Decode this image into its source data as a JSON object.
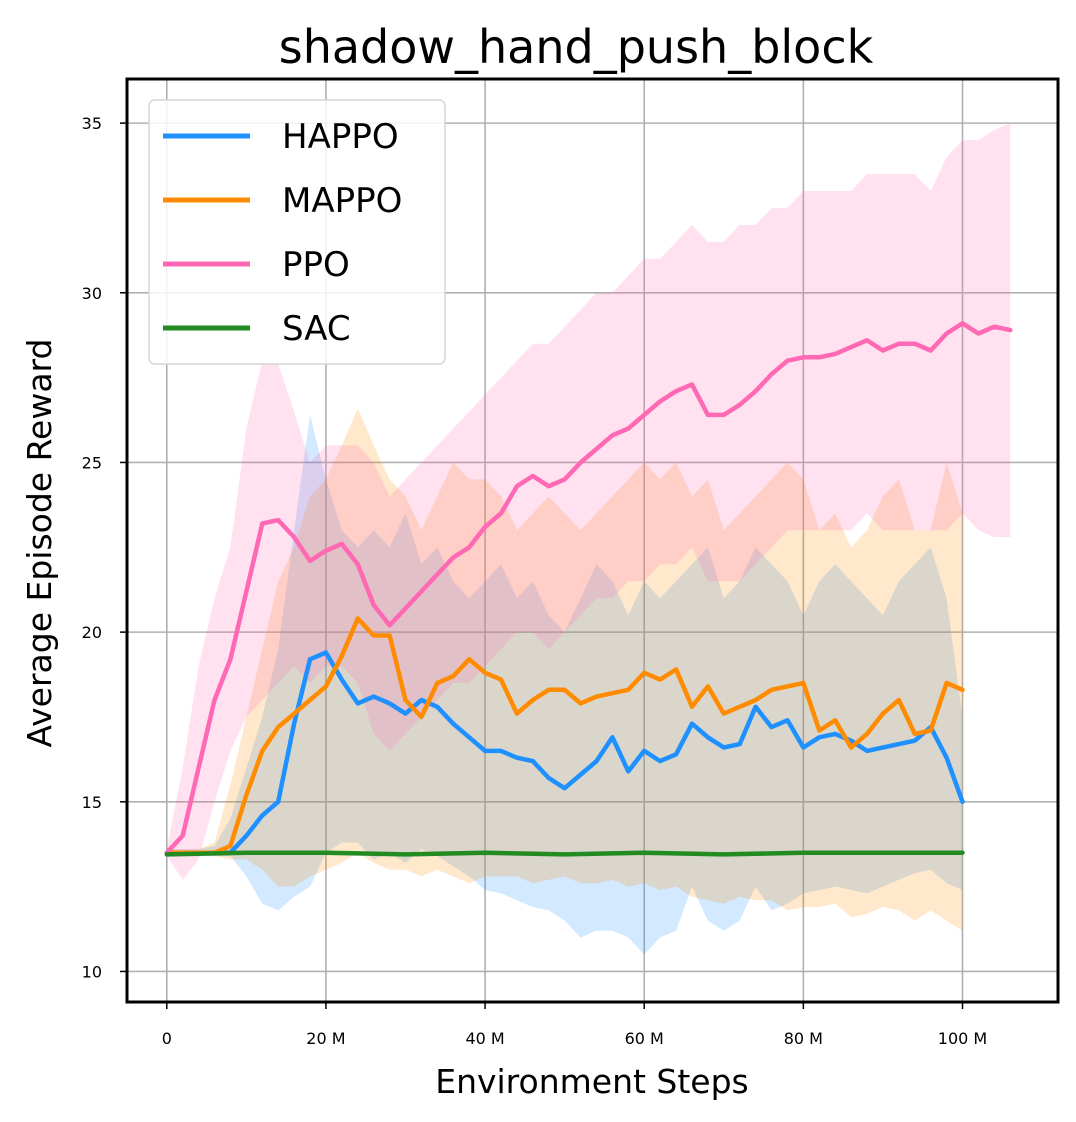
{
  "chart_data": {
    "type": "line",
    "title": "shadow_hand_push_block",
    "xlabel": "Environment Steps",
    "ylabel": "Average Episode Reward",
    "xlim": [
      -5,
      112
    ],
    "ylim": [
      9.1,
      36.3
    ],
    "x_ticks": [
      0,
      20,
      40,
      60,
      80,
      100
    ],
    "x_tick_labels": [
      "0",
      "20 M",
      "40 M",
      "60 M",
      "80 M",
      "100 M"
    ],
    "y_ticks": [
      10,
      15,
      20,
      25,
      30,
      35
    ],
    "y_tick_labels": [
      "10",
      "15",
      "20",
      "25",
      "30",
      "35"
    ],
    "grid": true,
    "legend_position": "top-left",
    "series": [
      {
        "name": "HAPPO",
        "color": "#1E90FF",
        "x": [
          0,
          2,
          4,
          6,
          8,
          10,
          12,
          14,
          16,
          18,
          20,
          22,
          24,
          26,
          28,
          30,
          32,
          34,
          36,
          38,
          40,
          42,
          44,
          46,
          48,
          50,
          52,
          54,
          56,
          58,
          60,
          62,
          64,
          66,
          68,
          70,
          72,
          74,
          76,
          78,
          80,
          82,
          84,
          86,
          88,
          90,
          92,
          94,
          96,
          98,
          100
        ],
        "y": [
          13.5,
          13.5,
          13.5,
          13.5,
          13.5,
          14.0,
          14.6,
          15.0,
          17.3,
          19.2,
          19.4,
          18.6,
          17.9,
          18.1,
          17.9,
          17.6,
          18.0,
          17.8,
          17.3,
          16.9,
          16.5,
          16.5,
          16.3,
          16.2,
          15.7,
          15.4,
          15.8,
          16.2,
          16.9,
          15.9,
          16.5,
          16.2,
          16.4,
          17.3,
          16.9,
          16.6,
          16.7,
          17.8,
          17.2,
          17.4,
          16.6,
          16.9,
          17.0,
          16.8,
          16.5,
          16.6,
          16.7,
          16.8,
          17.2,
          16.3,
          15.0
        ],
        "band_upper": [
          13.6,
          13.6,
          13.6,
          13.7,
          14.5,
          16.0,
          17.5,
          19.5,
          23.0,
          26.4,
          24.5,
          23.0,
          22.5,
          23.0,
          22.5,
          23.5,
          22.0,
          22.5,
          21.5,
          21.0,
          21.5,
          22.0,
          21.0,
          21.5,
          20.5,
          20.0,
          21.0,
          22.0,
          21.5,
          20.5,
          21.5,
          21.0,
          21.5,
          22.0,
          22.5,
          21.0,
          21.5,
          22.5,
          22.0,
          21.5,
          20.5,
          21.5,
          22.0,
          21.5,
          21.0,
          20.5,
          21.5,
          22.0,
          22.5,
          21.0,
          17.5
        ],
        "band_lower": [
          13.4,
          13.4,
          13.4,
          13.4,
          13.4,
          12.8,
          12.0,
          11.8,
          12.2,
          12.5,
          13.5,
          13.8,
          13.8,
          13.3,
          13.5,
          13.2,
          13.6,
          13.4,
          13.1,
          12.8,
          12.4,
          12.3,
          12.1,
          11.9,
          11.8,
          11.5,
          11.0,
          11.2,
          11.2,
          11.0,
          10.5,
          11.0,
          11.2,
          12.5,
          11.5,
          11.2,
          11.5,
          12.5,
          11.8,
          12.0,
          12.3,
          12.4,
          12.5,
          12.4,
          12.3,
          12.5,
          12.7,
          12.9,
          13.0,
          12.6,
          12.4
        ]
      },
      {
        "name": "MAPPO",
        "color": "#FF8C00",
        "x": [
          0,
          2,
          4,
          6,
          8,
          10,
          12,
          14,
          16,
          18,
          20,
          22,
          24,
          26,
          28,
          30,
          32,
          34,
          36,
          38,
          40,
          42,
          44,
          46,
          48,
          50,
          52,
          54,
          56,
          58,
          60,
          62,
          64,
          66,
          68,
          70,
          72,
          74,
          76,
          78,
          80,
          82,
          84,
          86,
          88,
          90,
          92,
          94,
          96,
          98,
          100
        ],
        "y": [
          13.5,
          13.5,
          13.5,
          13.5,
          13.7,
          15.2,
          16.5,
          17.2,
          17.6,
          18.0,
          18.4,
          19.3,
          20.4,
          19.9,
          19.9,
          18.0,
          17.5,
          18.5,
          18.7,
          19.2,
          18.8,
          18.6,
          17.6,
          18.0,
          18.3,
          18.3,
          17.9,
          18.1,
          18.2,
          18.3,
          18.8,
          18.6,
          18.9,
          17.8,
          18.4,
          17.6,
          17.8,
          18.0,
          18.3,
          18.4,
          18.5,
          17.1,
          17.4,
          16.6,
          17.0,
          17.6,
          18.0,
          17.0,
          17.1,
          18.5,
          18.3
        ],
        "band_upper": [
          13.6,
          13.6,
          13.6,
          13.8,
          15.5,
          17.5,
          19.5,
          21.5,
          22.5,
          24.0,
          24.5,
          25.5,
          26.6,
          25.5,
          24.5,
          24.0,
          23.0,
          24.0,
          25.0,
          24.5,
          24.5,
          24.0,
          23.0,
          23.5,
          24.0,
          23.5,
          23.0,
          23.5,
          24.0,
          24.5,
          25.0,
          24.5,
          25.0,
          24.0,
          24.5,
          23.0,
          23.5,
          24.0,
          24.5,
          25.0,
          24.5,
          23.0,
          23.5,
          22.5,
          23.0,
          24.0,
          24.5,
          23.0,
          23.0,
          25.0,
          23.5
        ],
        "band_lower": [
          13.4,
          13.4,
          13.4,
          13.4,
          13.3,
          13.3,
          13.0,
          12.5,
          12.5,
          12.8,
          13.0,
          13.2,
          13.5,
          13.2,
          13.0,
          13.0,
          12.8,
          13.0,
          12.8,
          12.6,
          12.8,
          12.8,
          12.8,
          12.6,
          12.7,
          12.8,
          12.6,
          12.6,
          12.7,
          12.5,
          12.6,
          12.4,
          12.5,
          12.2,
          12.1,
          12.0,
          12.2,
          12.1,
          12.1,
          11.8,
          11.9,
          11.9,
          12.0,
          11.6,
          11.7,
          11.9,
          11.8,
          11.5,
          11.8,
          11.5,
          11.2
        ]
      },
      {
        "name": "PPO",
        "color": "#FF69B4",
        "x": [
          0,
          2,
          4,
          6,
          8,
          10,
          12,
          14,
          16,
          18,
          20,
          22,
          24,
          26,
          28,
          30,
          32,
          34,
          36,
          38,
          40,
          42,
          44,
          46,
          48,
          50,
          52,
          54,
          56,
          58,
          60,
          62,
          64,
          66,
          68,
          70,
          72,
          74,
          76,
          78,
          80,
          82,
          84,
          86,
          88,
          90,
          92,
          94,
          96,
          98,
          100,
          102,
          104,
          106
        ],
        "y": [
          13.5,
          14.0,
          16.0,
          18.0,
          19.2,
          21.2,
          23.2,
          23.3,
          22.8,
          22.1,
          22.4,
          22.6,
          22.0,
          20.8,
          20.2,
          20.7,
          21.2,
          21.7,
          22.2,
          22.5,
          23.1,
          23.5,
          24.3,
          24.6,
          24.3,
          24.5,
          25.0,
          25.4,
          25.8,
          26.0,
          26.4,
          26.8,
          27.1,
          27.3,
          26.4,
          26.4,
          26.7,
          27.1,
          27.6,
          28.0,
          28.1,
          28.1,
          28.2,
          28.4,
          28.6,
          28.3,
          28.5,
          28.5,
          28.3,
          28.8,
          29.1,
          28.8,
          29.0,
          28.9
        ],
        "band_upper": [
          13.6,
          16.0,
          19.0,
          21.0,
          22.5,
          26.0,
          28.0,
          27.9,
          26.5,
          25.0,
          25.5,
          25.5,
          25.5,
          25.0,
          24.0,
          24.5,
          25.0,
          25.5,
          26.0,
          26.5,
          27.0,
          27.5,
          28.0,
          28.5,
          28.5,
          29.0,
          29.5,
          30.0,
          30.0,
          30.5,
          31.0,
          31.0,
          31.5,
          32.0,
          31.5,
          31.5,
          32.0,
          32.0,
          32.5,
          32.5,
          33.0,
          33.0,
          33.0,
          33.0,
          33.5,
          33.5,
          33.5,
          33.5,
          33.0,
          34.0,
          34.5,
          34.5,
          34.8,
          35.0
        ],
        "band_lower": [
          13.4,
          12.7,
          13.3,
          15.0,
          16.5,
          17.5,
          18.0,
          18.5,
          19.0,
          18.5,
          19.0,
          19.0,
          18.5,
          17.0,
          16.5,
          17.0,
          17.5,
          18.0,
          18.5,
          18.5,
          19.0,
          19.5,
          20.0,
          20.0,
          19.5,
          20.0,
          20.5,
          21.0,
          21.0,
          21.5,
          21.5,
          22.0,
          22.0,
          22.5,
          21.5,
          21.5,
          21.5,
          22.0,
          22.5,
          23.0,
          23.0,
          23.0,
          23.0,
          23.0,
          23.5,
          23.0,
          23.0,
          23.0,
          23.0,
          23.0,
          23.5,
          23.0,
          22.8,
          22.8
        ]
      },
      {
        "name": "SAC",
        "color": "#228B22",
        "x": [
          0,
          10,
          20,
          30,
          40,
          50,
          60,
          70,
          80,
          90,
          100
        ],
        "y": [
          13.45,
          13.5,
          13.5,
          13.45,
          13.5,
          13.45,
          13.5,
          13.45,
          13.5,
          13.5,
          13.5
        ],
        "band_upper": [
          13.5,
          13.55,
          13.55,
          13.5,
          13.55,
          13.5,
          13.55,
          13.5,
          13.55,
          13.55,
          13.55
        ],
        "band_lower": [
          13.4,
          13.45,
          13.45,
          13.4,
          13.45,
          13.4,
          13.45,
          13.4,
          13.45,
          13.45,
          13.45
        ]
      }
    ]
  }
}
